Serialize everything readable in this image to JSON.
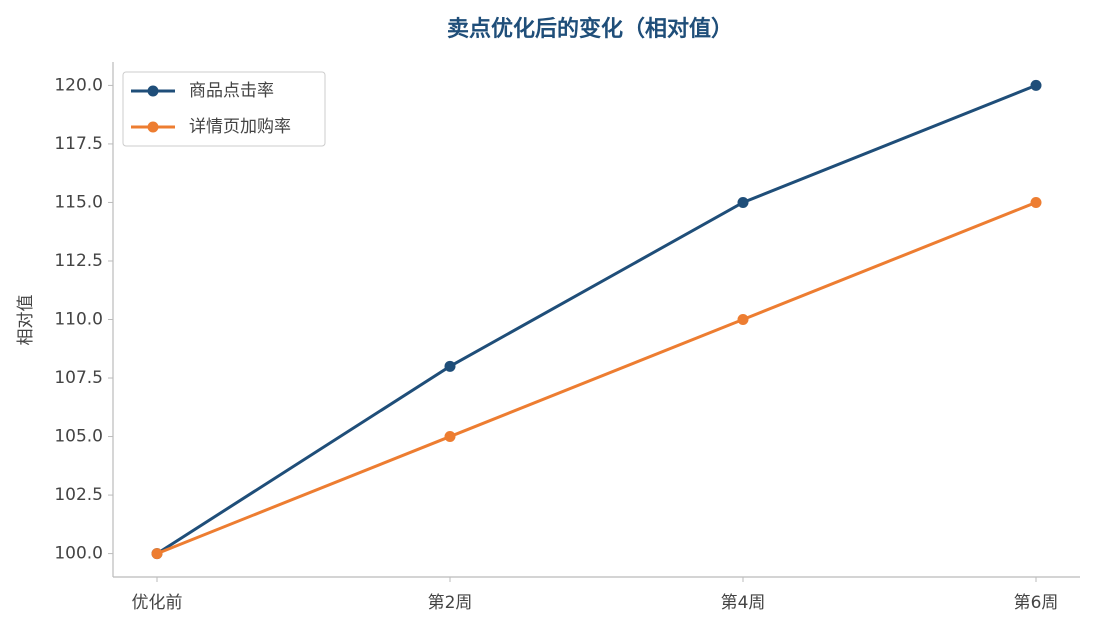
{
  "chart_data": {
    "type": "line",
    "title": "卖点优化后的变化（相对值）",
    "y_label": "相对值",
    "categories": [
      "优化前",
      "第2周",
      "第4周",
      "第6周"
    ],
    "series": [
      {
        "name": "商品点击率",
        "color": "#1f4e79",
        "values": [
          100,
          108,
          115,
          120
        ]
      },
      {
        "name": "详情页加购率",
        "color": "#ed7d31",
        "values": [
          100,
          105,
          110,
          115
        ]
      }
    ],
    "ylim": [
      99,
      121
    ],
    "yticks": [
      {
        "value": 100,
        "label": "100.0"
      },
      {
        "value": 102.5,
        "label": "102.5"
      },
      {
        "value": 105,
        "label": "105.0"
      },
      {
        "value": 107.5,
        "label": "107.5"
      },
      {
        "value": 110,
        "label": "110.0"
      },
      {
        "value": 112.5,
        "label": "112.5"
      },
      {
        "value": 115,
        "label": "115.0"
      },
      {
        "value": 117.5,
        "label": "117.5"
      },
      {
        "value": 120,
        "label": "120.0"
      }
    ],
    "legend": "upper left"
  }
}
